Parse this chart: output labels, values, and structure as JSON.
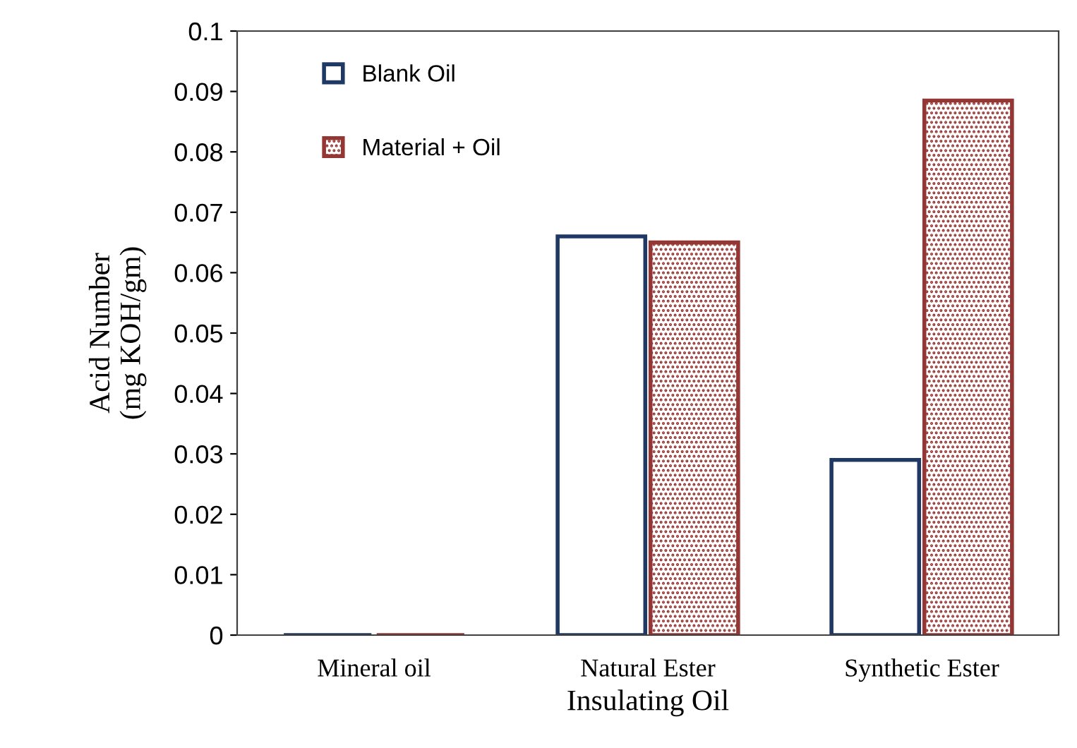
{
  "chart_data": {
    "type": "bar",
    "xlabel": "Insulating Oil",
    "ylabel": "Acid Number\n(mg KOH/gm)",
    "categories": [
      "Mineral oil",
      "Natural Ester",
      "Synthetic Ester"
    ],
    "series": [
      {
        "name": "Blank Oil",
        "color": "#1f3864",
        "values": [
          0,
          0.066,
          0.029
        ]
      },
      {
        "name": "Material + Oil",
        "color": "#943634",
        "values": [
          0,
          0.065,
          0.0885
        ]
      }
    ],
    "ylim": [
      0,
      0.1
    ],
    "yticks": [
      0,
      0.01,
      0.02,
      0.03,
      0.04,
      0.05,
      0.06,
      0.07,
      0.08,
      0.09,
      0.1
    ],
    "grid": false,
    "legend": "top left"
  }
}
